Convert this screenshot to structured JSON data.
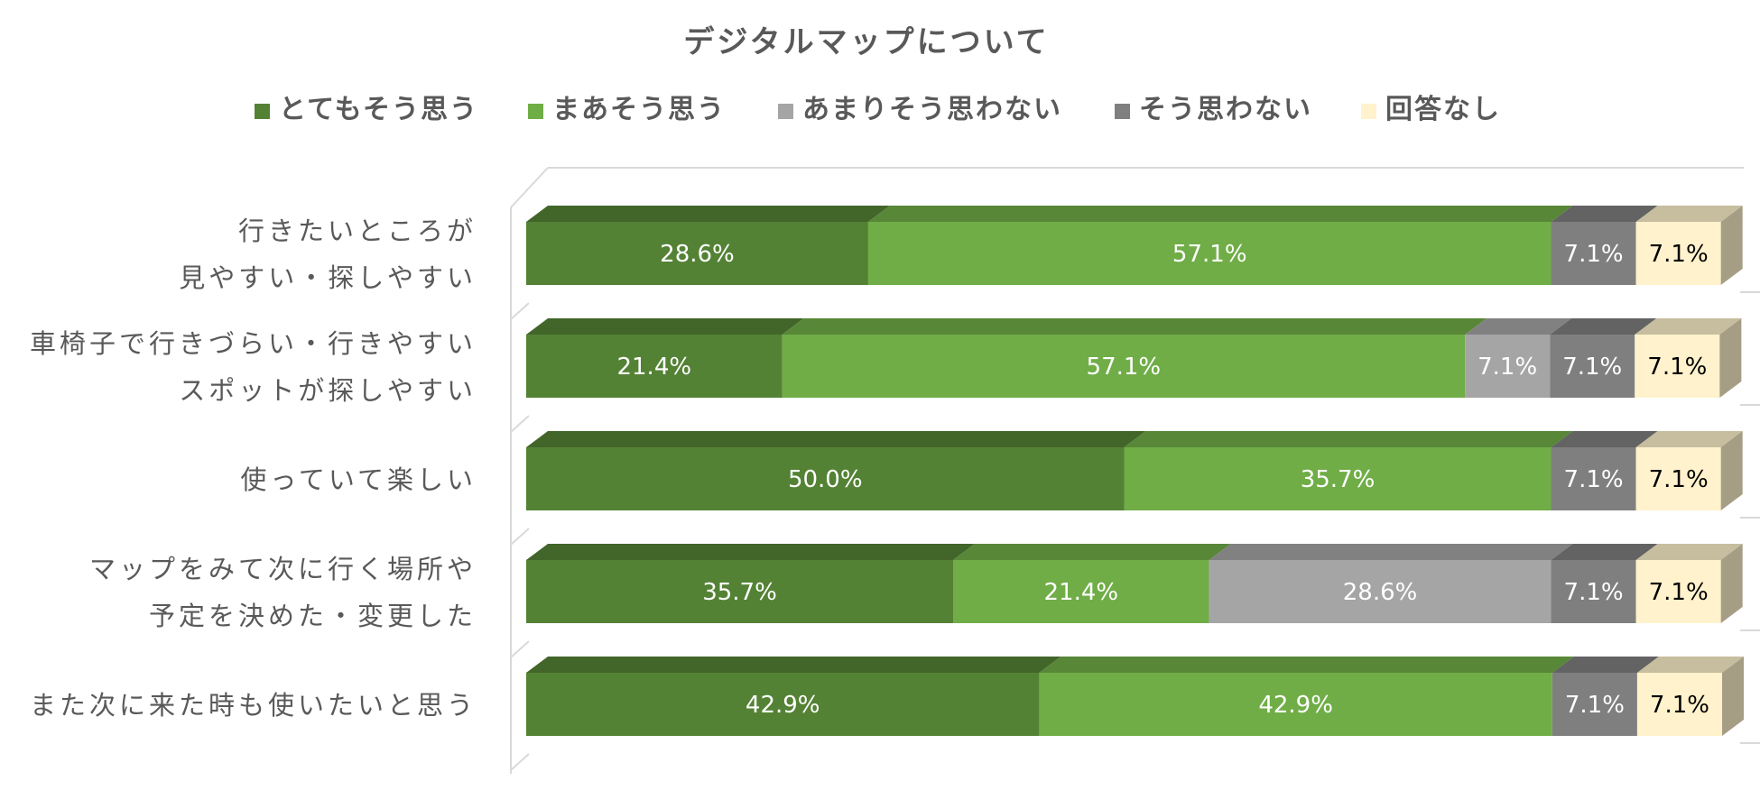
{
  "chart_data": {
    "type": "bar",
    "orientation": "horizontal",
    "stacked": "100%",
    "style": "3d",
    "title": "デジタルマップについて",
    "legend_position": "top",
    "categories": [
      [
        "行きたいところが",
        "見やすい・探しやすい"
      ],
      [
        "車椅子で行きづらい・行きやすい",
        "スポットが探しやすい"
      ],
      [
        "使っていて楽しい"
      ],
      [
        "マップをみて次に行く場所や",
        "予定を決めた・変更した"
      ],
      [
        "また次に来た時も使いたいと思う"
      ]
    ],
    "series": [
      {
        "name": "とてもそう思う",
        "color": "#548235",
        "label_color": "#ffffff",
        "values": [
          28.6,
          21.4,
          50.0,
          35.7,
          42.9
        ],
        "labels": [
          "28.6%",
          "21.4%",
          "50.0%",
          "35.7%",
          "42.9%"
        ]
      },
      {
        "name": "まあそう思う",
        "color": "#70ad47",
        "label_color": "#ffffff",
        "values": [
          57.1,
          57.1,
          35.7,
          21.4,
          42.9
        ],
        "labels": [
          "57.1%",
          "57.1%",
          "35.7%",
          "21.4%",
          "42.9%"
        ]
      },
      {
        "name": "あまりそう思わない",
        "color": "#a5a5a5",
        "label_color": "#ffffff",
        "values": [
          0,
          7.1,
          0,
          28.6,
          0
        ],
        "labels": [
          "",
          "7.1%",
          "",
          "28.6%",
          ""
        ]
      },
      {
        "name": "そう思わない",
        "color": "#7f7f7f",
        "label_color": "#ffffff",
        "values": [
          7.1,
          7.1,
          7.1,
          7.1,
          7.1
        ],
        "labels": [
          "7.1%",
          "7.1%",
          "7.1%",
          "7.1%",
          "7.1%"
        ]
      },
      {
        "name": "回答なし",
        "color": "#fff2cc",
        "label_color": "#000000",
        "values": [
          7.1,
          7.1,
          7.1,
          7.1,
          7.1
        ],
        "labels": [
          "7.1%",
          "7.1%",
          "7.1%",
          "7.1%",
          "7.1%"
        ]
      }
    ],
    "xlim": [
      0,
      100
    ],
    "grid": true
  }
}
